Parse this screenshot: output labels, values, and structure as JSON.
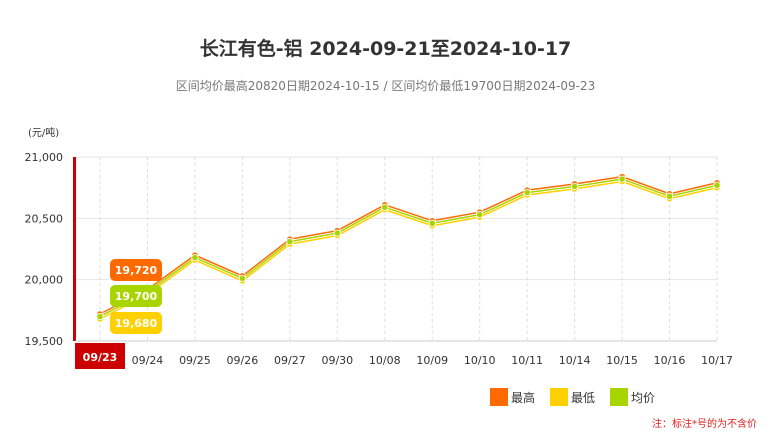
{
  "title": "长江有色-铝 2024-09-21至2024-10-17",
  "subtitle": "区间均价最高20820日期2024-10-15 / 区间均价最低19700日期2024-09-23",
  "note": "注：标注*号的为不含价",
  "colors": {
    "high": "#ff6a00",
    "low": "#ffd000",
    "avg": "#a8d400",
    "axis_highlight": "#cc0000"
  },
  "chart_data": {
    "type": "line",
    "ylabel": "(元/吨)",
    "xlabel": "",
    "ylim": [
      19500,
      21000
    ],
    "yticks": [
      19500,
      20000,
      20500,
      21000
    ],
    "ytick_labels": [
      "19,500",
      "20,000",
      "20,500",
      "21,000"
    ],
    "categories": [
      "09/23",
      "09/24",
      "09/25",
      "09/26",
      "09/27",
      "09/30",
      "10/08",
      "10/09",
      "10/10",
      "10/11",
      "10/14",
      "10/15",
      "10/16",
      "10/17"
    ],
    "highlight_category": "09/23",
    "series": [
      {
        "name": "最高",
        "color": "#ff6a00",
        "values": [
          19720,
          19920,
          20200,
          20030,
          20330,
          20400,
          20610,
          20480,
          20550,
          20730,
          20780,
          20840,
          20700,
          20790
        ]
      },
      {
        "name": "最低",
        "color": "#ffd000",
        "values": [
          19680,
          19880,
          20160,
          19990,
          20290,
          20360,
          20570,
          20440,
          20510,
          20690,
          20740,
          20800,
          20660,
          20750
        ]
      },
      {
        "name": "均价",
        "color": "#a8d400",
        "values": [
          19700,
          19900,
          20180,
          20010,
          20310,
          20380,
          20590,
          20460,
          20530,
          20710,
          20760,
          20820,
          20680,
          20770
        ]
      }
    ],
    "tooltip_labels": [
      "19,720",
      "19,700",
      "19,680"
    ],
    "grid": true,
    "legend_position": "bottom-right"
  }
}
